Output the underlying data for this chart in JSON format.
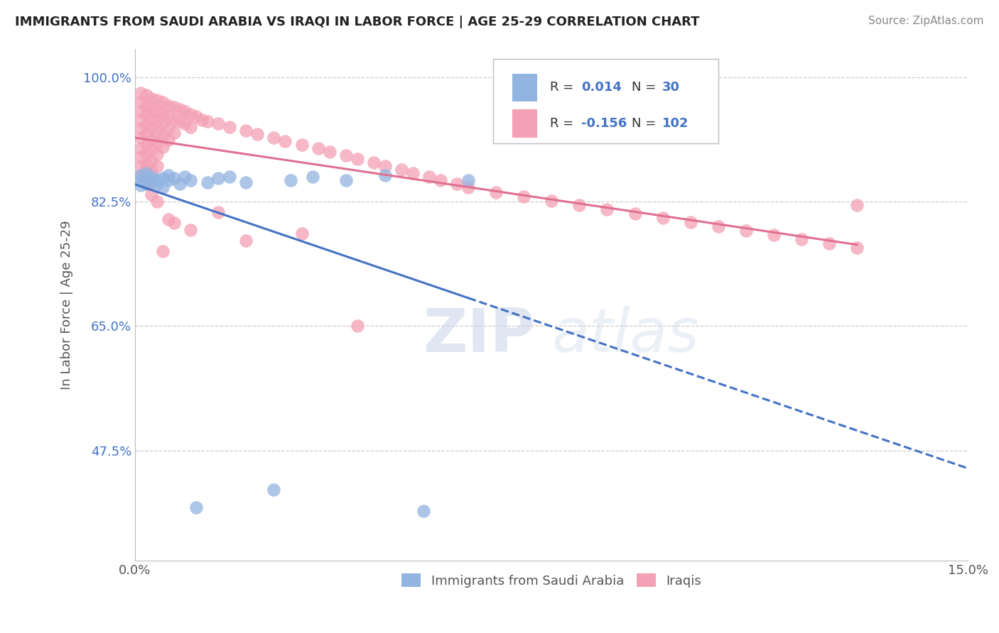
{
  "title": "IMMIGRANTS FROM SAUDI ARABIA VS IRAQI IN LABOR FORCE | AGE 25-29 CORRELATION CHART",
  "source_text": "Source: ZipAtlas.com",
  "ylabel": "In Labor Force | Age 25-29",
  "xlim": [
    0.0,
    0.15
  ],
  "ylim": [
    0.32,
    1.04
  ],
  "xticks": [
    0.0,
    0.15
  ],
  "xticklabels": [
    "0.0%",
    "15.0%"
  ],
  "yticks": [
    0.475,
    0.65,
    0.825,
    1.0
  ],
  "yticklabels": [
    "47.5%",
    "65.0%",
    "82.5%",
    "100.0%"
  ],
  "legend_r_saudi": "0.014",
  "legend_n_saudi": "30",
  "legend_r_iraqi": "-0.156",
  "legend_n_iraqi": "102",
  "color_saudi": "#92b4e1",
  "color_iraqi": "#f4a0b5",
  "trend_color_saudi": "#4472c4",
  "trend_color_iraqi": "#e07090",
  "watermark_zip": "ZIP",
  "watermark_atlas": "atlas",
  "background_color": "#ffffff",
  "grid_color": "#cccccc",
  "saudi_x": [
    0.001,
    0.001,
    0.001,
    0.002,
    0.002,
    0.002,
    0.003,
    0.003,
    0.004,
    0.004,
    0.005,
    0.005,
    0.006,
    0.006,
    0.007,
    0.008,
    0.009,
    0.01,
    0.011,
    0.013,
    0.015,
    0.017,
    0.02,
    0.025,
    0.028,
    0.032,
    0.038,
    0.045,
    0.052,
    0.06
  ],
  "saudi_y": [
    0.855,
    0.862,
    0.848,
    0.858,
    0.85,
    0.865,
    0.853,
    0.86,
    0.856,
    0.85,
    0.858,
    0.845,
    0.862,
    0.855,
    0.858,
    0.85,
    0.86,
    0.855,
    0.395,
    0.852,
    0.858,
    0.86,
    0.852,
    0.42,
    0.855,
    0.86,
    0.855,
    0.862,
    0.39,
    0.855
  ],
  "iraqi_x": [
    0.001,
    0.001,
    0.001,
    0.001,
    0.001,
    0.001,
    0.001,
    0.001,
    0.001,
    0.001,
    0.002,
    0.002,
    0.002,
    0.002,
    0.002,
    0.002,
    0.002,
    0.002,
    0.002,
    0.002,
    0.003,
    0.003,
    0.003,
    0.003,
    0.003,
    0.003,
    0.003,
    0.003,
    0.003,
    0.004,
    0.004,
    0.004,
    0.004,
    0.004,
    0.004,
    0.004,
    0.005,
    0.005,
    0.005,
    0.005,
    0.005,
    0.006,
    0.006,
    0.006,
    0.006,
    0.007,
    0.007,
    0.007,
    0.008,
    0.008,
    0.009,
    0.009,
    0.01,
    0.01,
    0.011,
    0.012,
    0.013,
    0.015,
    0.017,
    0.02,
    0.022,
    0.025,
    0.027,
    0.03,
    0.033,
    0.035,
    0.038,
    0.04,
    0.043,
    0.045,
    0.048,
    0.05,
    0.053,
    0.055,
    0.058,
    0.06,
    0.065,
    0.07,
    0.075,
    0.08,
    0.085,
    0.09,
    0.095,
    0.1,
    0.105,
    0.11,
    0.115,
    0.12,
    0.125,
    0.13,
    0.002,
    0.003,
    0.004,
    0.005,
    0.006,
    0.007,
    0.01,
    0.015,
    0.02,
    0.03,
    0.04,
    0.13
  ],
  "iraqi_y": [
    0.978,
    0.965,
    0.952,
    0.94,
    0.928,
    0.915,
    0.9,
    0.888,
    0.875,
    0.862,
    0.975,
    0.96,
    0.948,
    0.932,
    0.92,
    0.905,
    0.892,
    0.878,
    0.862,
    0.85,
    0.97,
    0.955,
    0.942,
    0.928,
    0.912,
    0.898,
    0.882,
    0.868,
    0.852,
    0.968,
    0.952,
    0.938,
    0.922,
    0.908,
    0.892,
    0.875,
    0.965,
    0.95,
    0.935,
    0.918,
    0.902,
    0.96,
    0.945,
    0.928,
    0.912,
    0.958,
    0.94,
    0.922,
    0.955,
    0.938,
    0.952,
    0.935,
    0.948,
    0.93,
    0.945,
    0.94,
    0.938,
    0.935,
    0.93,
    0.925,
    0.92,
    0.915,
    0.91,
    0.905,
    0.9,
    0.895,
    0.89,
    0.885,
    0.88,
    0.875,
    0.87,
    0.865,
    0.86,
    0.855,
    0.85,
    0.845,
    0.838,
    0.832,
    0.826,
    0.82,
    0.814,
    0.808,
    0.802,
    0.796,
    0.79,
    0.784,
    0.778,
    0.772,
    0.766,
    0.76,
    0.872,
    0.835,
    0.825,
    0.755,
    0.8,
    0.795,
    0.785,
    0.81,
    0.77,
    0.78,
    0.65,
    0.82
  ]
}
